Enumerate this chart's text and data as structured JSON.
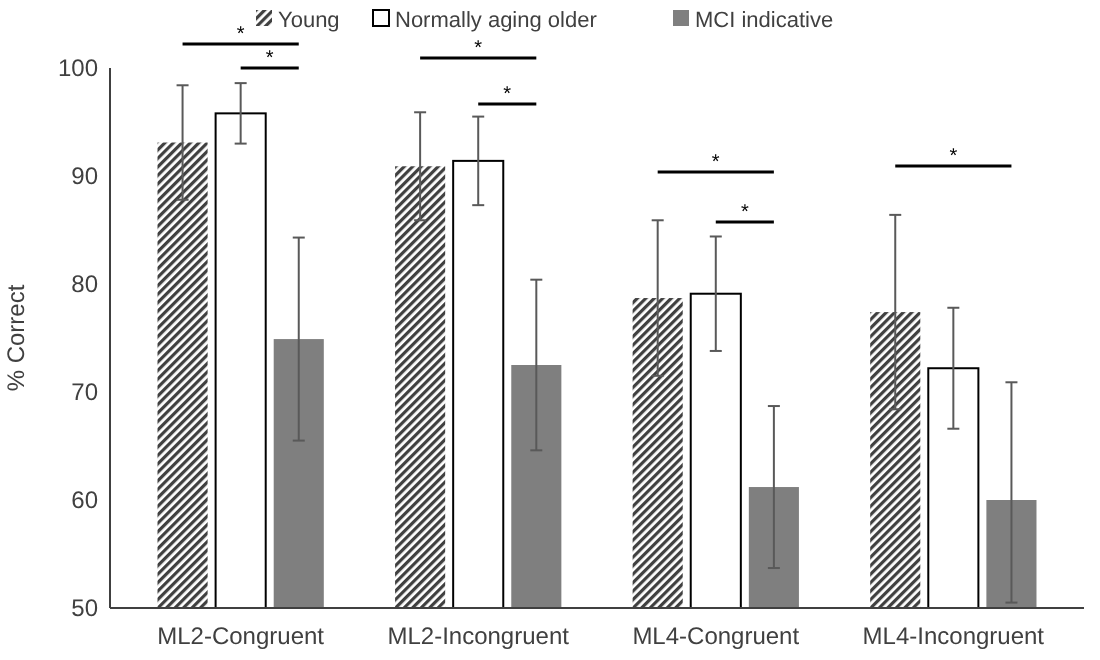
{
  "chart_data": {
    "type": "bar",
    "ylabel": "% Correct",
    "categories": [
      "ML2-Congruent",
      "ML2-Incongruent",
      "ML4-Congruent",
      "ML4-Incongruent"
    ],
    "series": [
      {
        "name": "Young",
        "color": "#404040",
        "values": [
          93.1,
          90.9,
          78.7,
          77.4
        ],
        "errors": [
          5.3,
          5,
          7.2,
          9
        ]
      },
      {
        "name": "Normally aging older",
        "color": "#ffffff",
        "values": [
          95.8,
          91.4,
          79.1,
          72.2
        ],
        "errors": [
          2.8,
          4.1,
          5.3,
          5.6
        ]
      },
      {
        "name": "MCI indicative",
        "color": "#7f7f7f",
        "values": [
          74.9,
          72.5,
          61.2,
          60
        ],
        "errors": [
          9.4,
          7.9,
          7.5,
          [
            50.5,
            70.9
          ]
        ]
      }
    ],
    "ylim": [
      50,
      100
    ],
    "yticks": [
      50,
      60,
      70,
      80,
      90,
      100
    ],
    "grid": false,
    "legend": "top",
    "annotations": [
      "*",
      "*",
      "*",
      "*",
      "*",
      "*",
      "*"
    ]
  }
}
